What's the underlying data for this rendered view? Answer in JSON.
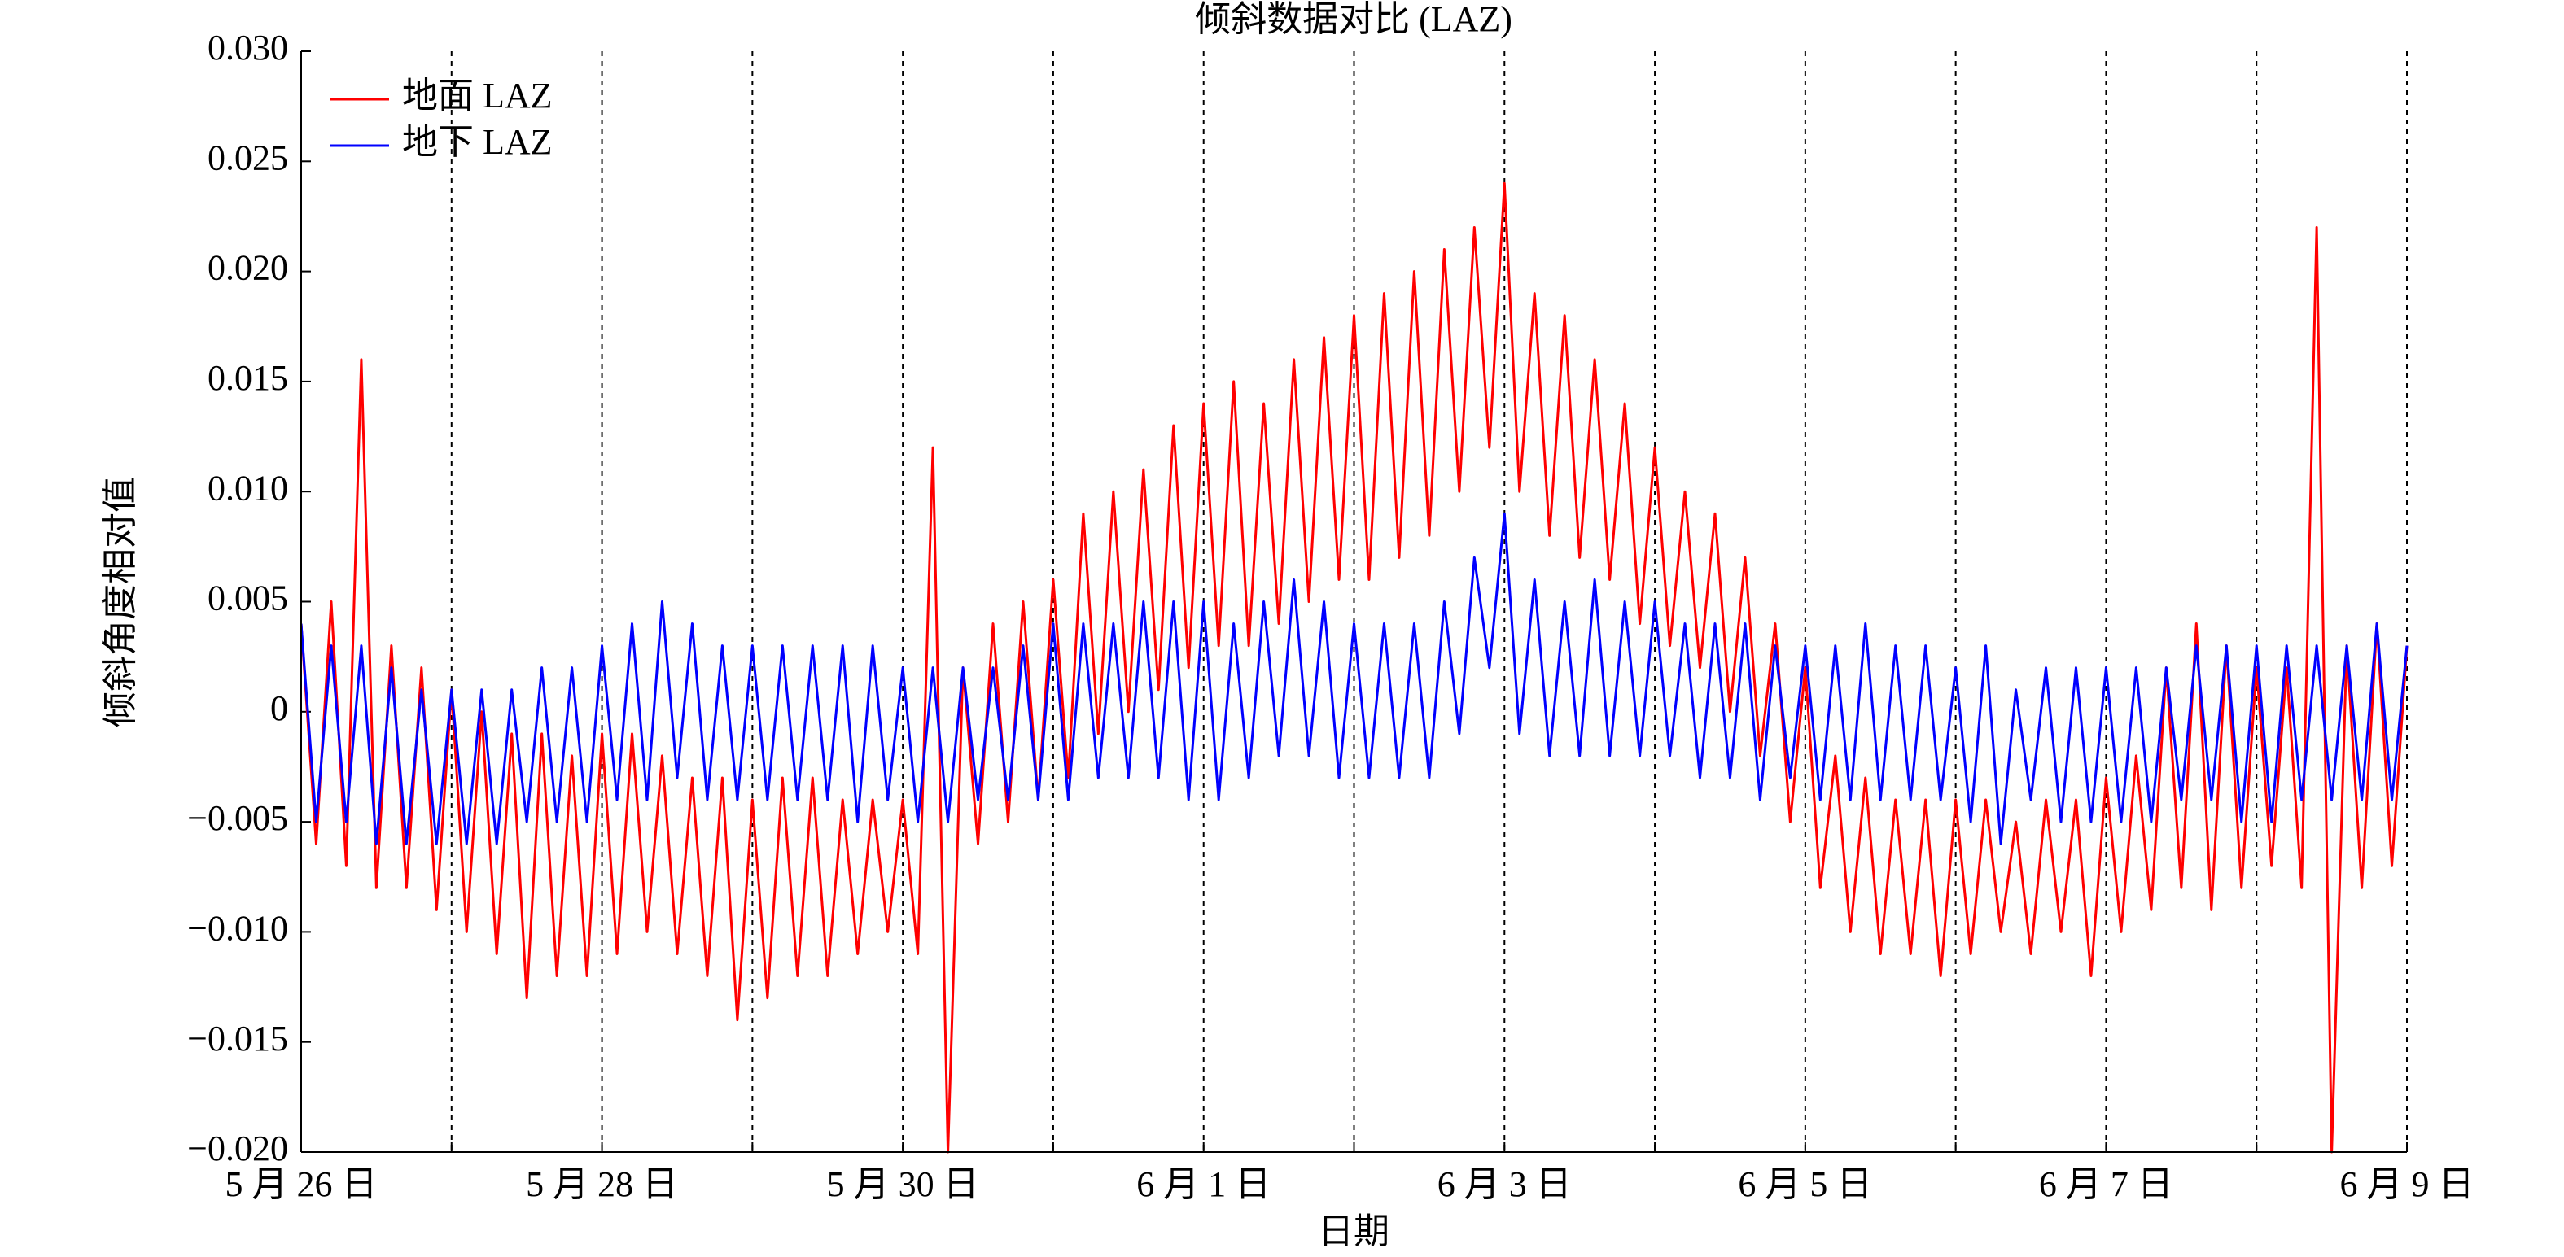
{
  "chart_data": {
    "type": "line",
    "title": "倾斜数据对比 (LAZ)",
    "x_label": "日期",
    "y_label": "倾斜角度相对值",
    "xlim": [
      0,
      14
    ],
    "ylim": [
      -0.02,
      0.03
    ],
    "xgrid": true,
    "legend": "upper-left",
    "xticks": [
      {
        "value": 0,
        "label": "5 月 26 日"
      },
      {
        "value": 1,
        "label": null
      },
      {
        "value": 2,
        "label": "5 月 28 日"
      },
      {
        "value": 3,
        "label": null
      },
      {
        "value": 4,
        "label": "5 月 30 日"
      },
      {
        "value": 5,
        "label": null
      },
      {
        "value": 6,
        "label": "6 月 1 日"
      },
      {
        "value": 7,
        "label": null
      },
      {
        "value": 8,
        "label": "6 月 3 日"
      },
      {
        "value": 9,
        "label": null
      },
      {
        "value": 10,
        "label": "6 月 5 日"
      },
      {
        "value": 11,
        "label": null
      },
      {
        "value": 12,
        "label": "6 月 7 日"
      },
      {
        "value": 13,
        "label": null
      },
      {
        "value": 14,
        "label": "6 月 9 日"
      }
    ],
    "yticks": [
      {
        "value": -0.02,
        "label": "−0.020"
      },
      {
        "value": -0.015,
        "label": "−0.015"
      },
      {
        "value": -0.01,
        "label": "−0.010"
      },
      {
        "value": -0.005,
        "label": "−0.005"
      },
      0,
      {
        "value": 0.005,
        "label": "0.005"
      },
      {
        "value": 0.01,
        "label": "0.010"
      },
      {
        "value": 0.015,
        "label": "0.015"
      },
      {
        "value": 0.02,
        "label": "0.020"
      },
      {
        "value": 0.025,
        "label": "0.025"
      },
      {
        "value": 0.03,
        "label": "0.030"
      }
    ],
    "x": [
      0,
      0.1,
      0.2,
      0.3,
      0.4,
      0.5,
      0.6,
      0.7,
      0.8,
      0.9,
      1,
      1.1,
      1.2,
      1.3,
      1.4,
      1.5,
      1.6,
      1.7,
      1.8,
      1.9,
      2,
      2.1,
      2.2,
      2.3,
      2.4,
      2.5,
      2.6,
      2.7,
      2.8,
      2.9,
      3,
      3.1,
      3.2,
      3.3,
      3.4,
      3.5,
      3.6,
      3.7,
      3.8,
      3.9,
      4,
      4.1,
      4.2,
      4.3,
      4.4,
      4.5,
      4.6,
      4.7,
      4.8,
      4.9,
      5,
      5.1,
      5.2,
      5.3,
      5.4,
      5.5,
      5.6,
      5.7,
      5.8,
      5.9,
      6,
      6.1,
      6.2,
      6.3,
      6.4,
      6.5,
      6.6,
      6.7,
      6.8,
      6.9,
      7,
      7.1,
      7.2,
      7.3,
      7.4,
      7.5,
      7.6,
      7.7,
      7.8,
      7.9,
      8,
      8.1,
      8.2,
      8.3,
      8.4,
      8.5,
      8.6,
      8.7,
      8.8,
      8.9,
      9,
      9.1,
      9.2,
      9.3,
      9.4,
      9.5,
      9.6,
      9.7,
      9.8,
      9.9,
      10,
      10.1,
      10.2,
      10.3,
      10.4,
      10.5,
      10.6,
      10.7,
      10.8,
      10.9,
      11,
      11.1,
      11.2,
      11.3,
      11.4,
      11.5,
      11.6,
      11.7,
      11.8,
      11.9,
      12,
      12.1,
      12.2,
      12.3,
      12.4,
      12.5,
      12.6,
      12.7,
      12.8,
      12.9,
      13,
      13.1,
      13.2,
      13.3,
      13.4,
      13.5,
      13.6,
      13.7,
      13.8,
      13.9,
      14
    ],
    "series": [
      {
        "name": "地面 LAZ",
        "color": "#ff0000",
        "values": [
          0.004,
          -0.006,
          0.005,
          -0.007,
          0.016,
          -0.008,
          0.003,
          -0.008,
          0.002,
          -0.009,
          0.001,
          -0.01,
          0.0,
          -0.011,
          -0.001,
          -0.013,
          -0.001,
          -0.012,
          -0.002,
          -0.012,
          -0.001,
          -0.011,
          -0.001,
          -0.01,
          -0.002,
          -0.011,
          -0.003,
          -0.012,
          -0.003,
          -0.014,
          -0.004,
          -0.013,
          -0.003,
          -0.012,
          -0.003,
          -0.012,
          -0.004,
          -0.011,
          -0.004,
          -0.01,
          -0.004,
          -0.011,
          0.012,
          -0.02,
          0.002,
          -0.006,
          0.004,
          -0.005,
          0.005,
          -0.004,
          0.006,
          -0.003,
          0.009,
          -0.001,
          0.01,
          0.0,
          0.011,
          0.001,
          0.013,
          0.002,
          0.014,
          0.003,
          0.015,
          0.003,
          0.014,
          0.004,
          0.016,
          0.005,
          0.017,
          0.006,
          0.018,
          0.006,
          0.019,
          0.007,
          0.02,
          0.008,
          0.021,
          0.01,
          0.022,
          0.012,
          0.024,
          0.01,
          0.019,
          0.008,
          0.018,
          0.007,
          0.016,
          0.006,
          0.014,
          0.004,
          0.012,
          0.003,
          0.01,
          0.002,
          0.009,
          0.0,
          0.007,
          -0.002,
          0.004,
          -0.005,
          0.002,
          -0.008,
          -0.002,
          -0.01,
          -0.003,
          -0.011,
          -0.004,
          -0.011,
          -0.004,
          -0.012,
          -0.004,
          -0.011,
          -0.004,
          -0.01,
          -0.005,
          -0.011,
          -0.004,
          -0.01,
          -0.004,
          -0.012,
          -0.003,
          -0.01,
          -0.002,
          -0.009,
          0.002,
          -0.008,
          0.004,
          -0.009,
          0.003,
          -0.008,
          0.002,
          -0.007,
          0.002,
          -0.008,
          0.022,
          -0.02,
          0.003,
          -0.008,
          0.004,
          -0.007,
          0.003
        ]
      },
      {
        "name": "地下 LAZ",
        "color": "#0000ff",
        "values": [
          0.004,
          -0.005,
          0.003,
          -0.005,
          0.003,
          -0.006,
          0.002,
          -0.006,
          0.001,
          -0.006,
          0.001,
          -0.006,
          0.001,
          -0.006,
          0.001,
          -0.005,
          0.002,
          -0.005,
          0.002,
          -0.005,
          0.003,
          -0.004,
          0.004,
          -0.004,
          0.005,
          -0.003,
          0.004,
          -0.004,
          0.003,
          -0.004,
          0.003,
          -0.004,
          0.003,
          -0.004,
          0.003,
          -0.004,
          0.003,
          -0.005,
          0.003,
          -0.004,
          0.002,
          -0.005,
          0.002,
          -0.005,
          0.002,
          -0.004,
          0.002,
          -0.004,
          0.003,
          -0.004,
          0.004,
          -0.004,
          0.004,
          -0.003,
          0.004,
          -0.003,
          0.005,
          -0.003,
          0.005,
          -0.004,
          0.005,
          -0.004,
          0.004,
          -0.003,
          0.005,
          -0.002,
          0.006,
          -0.002,
          0.005,
          -0.003,
          0.004,
          -0.003,
          0.004,
          -0.003,
          0.004,
          -0.003,
          0.005,
          -0.001,
          0.007,
          0.002,
          0.009,
          -0.001,
          0.006,
          -0.002,
          0.005,
          -0.002,
          0.006,
          -0.002,
          0.005,
          -0.002,
          0.005,
          -0.002,
          0.004,
          -0.003,
          0.004,
          -0.003,
          0.004,
          -0.004,
          0.003,
          -0.003,
          0.003,
          -0.004,
          0.003,
          -0.004,
          0.004,
          -0.004,
          0.003,
          -0.004,
          0.003,
          -0.004,
          0.002,
          -0.005,
          0.003,
          -0.006,
          0.001,
          -0.004,
          0.002,
          -0.005,
          0.002,
          -0.005,
          0.002,
          -0.005,
          0.002,
          -0.005,
          0.002,
          -0.004,
          0.003,
          -0.004,
          0.003,
          -0.005,
          0.003,
          -0.005,
          0.003,
          -0.004,
          0.003,
          -0.004,
          0.003,
          -0.004,
          0.004,
          -0.004,
          0.003
        ]
      }
    ]
  }
}
